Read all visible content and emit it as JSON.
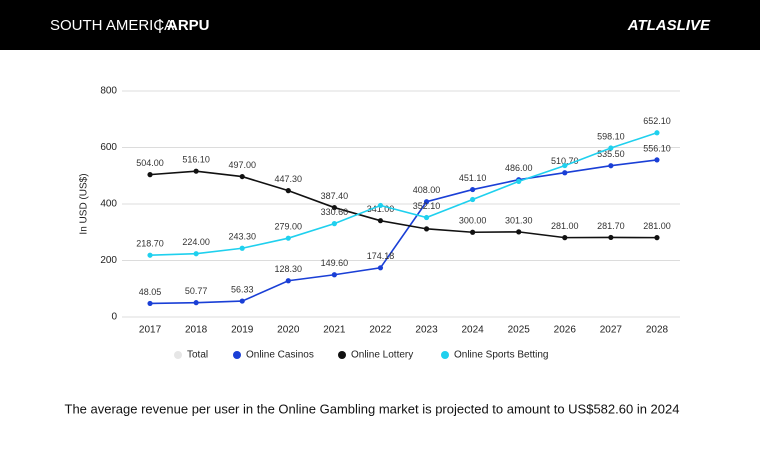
{
  "header": {
    "region": "SOUTH AMERICA",
    "separator": "|",
    "metric": "ARPU",
    "brand": "ATLASLIVE"
  },
  "caption": "The average revenue per user in the Online Gambling market is projected to amount to US$582.60 in 2024",
  "chart_data": {
    "type": "line",
    "y_label": "In USD (US$)",
    "categories": [
      "2017",
      "2018",
      "2019",
      "2020",
      "2021",
      "2022",
      "2023",
      "2024",
      "2025",
      "2026",
      "2027",
      "2028"
    ],
    "ylim": [
      0,
      800
    ],
    "yticks": [
      0,
      200,
      400,
      600,
      800
    ],
    "grid": true,
    "series": [
      {
        "name": "Total",
        "color": "#e6e6e6",
        "values": [
          null,
          null,
          null,
          null,
          null,
          null,
          null,
          null,
          null,
          null,
          null,
          null
        ]
      },
      {
        "name": "Online Casinos",
        "color": "#1a3fd6",
        "values": [
          48.05,
          50.77,
          56.33,
          128.3,
          149.6,
          174.18,
          408,
          451.1,
          486,
          510.7,
          535.5,
          556.1
        ],
        "value_labels": [
          "48.05",
          "50.77",
          "56.33",
          "128.30",
          "149.60",
          "174.18",
          "408.00",
          "451.10",
          "486.00",
          "510.70",
          "535.50",
          "556.10"
        ]
      },
      {
        "name": "Online Lottery",
        "color": "#111111",
        "values": [
          504,
          516.1,
          497,
          447.3,
          387.4,
          341,
          312,
          300,
          301.3,
          281,
          281.7,
          281
        ],
        "value_labels": [
          "504.00",
          "516.10",
          "497.00",
          "447.30",
          "387.40",
          "341.00",
          null,
          "300.00",
          "301.30",
          "281.00",
          "281.70",
          "281.00"
        ]
      },
      {
        "name": "Online Sports Betting",
        "color": "#1fd0ee",
        "values": [
          218.7,
          224,
          243.3,
          279,
          330.6,
          395,
          352.1,
          416,
          480,
          536,
          598.1,
          652.1
        ],
        "value_labels": [
          "218.70",
          "224.00",
          "243.30",
          "279.00",
          "330.60",
          null,
          "352.10",
          null,
          null,
          null,
          "598.10",
          "652.10"
        ]
      }
    ]
  }
}
